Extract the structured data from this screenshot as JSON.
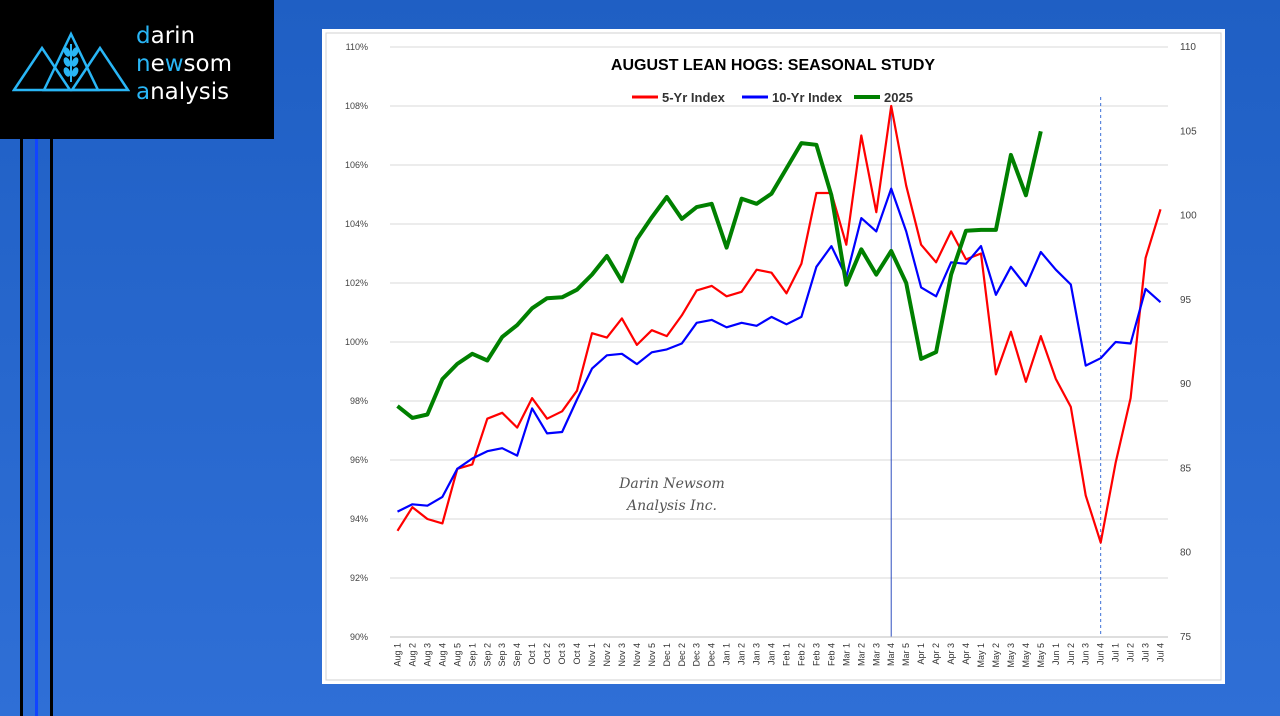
{
  "logo": {
    "line1_first": "d",
    "line1_rest": "arin",
    "line2_first": "n",
    "line2_rest": "e",
    "line2_mid": "w",
    "line2_end": "som",
    "line3_first": "a",
    "line3_rest": "nalysis"
  },
  "watermark": {
    "line1": "Darin Newsom",
    "line2": "Analysis Inc."
  },
  "colors": {
    "five_yr": "#ff0000",
    "ten_yr": "#0000ff",
    "y2025": "#008000",
    "accent": "#29b6f6"
  },
  "chart_data": {
    "type": "line",
    "title": "AUGUST LEAN HOGS: SEASONAL STUDY",
    "legend_position": "top-center",
    "categories": [
      "Aug 1",
      "Aug 2",
      "Aug 3",
      "Aug 4",
      "Aug 5",
      "Sep 1",
      "Sep 2",
      "Sep 3",
      "Sep 4",
      "Oct 1",
      "Oct 2",
      "Oct 3",
      "Oct 4",
      "Nov 1",
      "Nov 2",
      "Nov 3",
      "Nov 4",
      "Nov 5",
      "Dec 1",
      "Dec 2",
      "Dec 3",
      "Dec 4",
      "Jan 1",
      "Jan 2",
      "Jan 3",
      "Jan 4",
      "Feb 1",
      "Feb 2",
      "Feb 3",
      "Feb 4",
      "Mar 1",
      "Mar 2",
      "Mar 3",
      "Mar 4",
      "Mar 5",
      "Apr 1",
      "Apr 2",
      "Apr 3",
      "Apr 4",
      "May 1",
      "May 2",
      "May 3",
      "May 4",
      "May 5",
      "Jun 1",
      "Jun 2",
      "Jun 3",
      "Jun 4",
      "Jul 1",
      "Jul 2",
      "Jul 3",
      "Jul 4"
    ],
    "y_left": {
      "min": 90,
      "max": 110,
      "ticks": [
        "90%",
        "92%",
        "94%",
        "96%",
        "98%",
        "100%",
        "102%",
        "104%",
        "106%",
        "108%",
        "110%"
      ]
    },
    "y_right": {
      "min": 75,
      "max": 110,
      "ticks": [
        "75",
        "80",
        "85",
        "90",
        "95",
        "100",
        "105",
        "110"
      ]
    },
    "series": [
      {
        "name": "5-Yr Index",
        "axis": "left",
        "values": [
          93.6,
          94.4,
          94.0,
          93.85,
          95.7,
          95.85,
          97.4,
          97.6,
          97.1,
          98.1,
          97.4,
          97.65,
          98.35,
          100.3,
          100.15,
          100.8,
          99.9,
          100.4,
          100.2,
          100.9,
          101.75,
          101.9,
          101.55,
          101.7,
          102.45,
          102.35,
          101.65,
          102.65,
          105.05,
          105.05,
          103.3,
          107.0,
          104.4,
          108.0,
          105.3,
          103.3,
          102.7,
          103.75,
          102.8,
          103.0,
          98.9,
          100.35,
          98.65,
          100.2,
          98.75,
          97.8,
          94.8,
          93.2,
          95.9,
          98.1,
          102.85,
          104.5
        ]
      },
      {
        "name": "10-Yr Index",
        "axis": "left",
        "values": [
          94.25,
          94.5,
          94.45,
          94.75,
          95.7,
          96.05,
          96.3,
          96.4,
          96.15,
          97.75,
          96.9,
          96.95,
          98.05,
          99.1,
          99.55,
          99.6,
          99.25,
          99.65,
          99.75,
          99.95,
          100.65,
          100.75,
          100.5,
          100.65,
          100.55,
          100.85,
          100.6,
          100.85,
          102.55,
          103.25,
          102.2,
          104.2,
          103.75,
          105.2,
          103.75,
          101.85,
          101.55,
          102.7,
          102.65,
          103.25,
          101.6,
          102.55,
          101.9,
          103.05,
          102.45,
          101.95,
          99.2,
          99.45,
          100.0,
          99.95,
          101.8,
          101.35
        ]
      },
      {
        "name": "2025",
        "axis": "right",
        "values": [
          88.7,
          88.0,
          88.2,
          90.3,
          91.2,
          91.8,
          91.4,
          92.8,
          93.5,
          94.5,
          95.1,
          95.15,
          95.6,
          96.5,
          97.6,
          96.1,
          98.6,
          99.9,
          101.1,
          99.8,
          100.5,
          100.7,
          98.1,
          101.0,
          100.7,
          101.3,
          102.8,
          104.3,
          104.2,
          101.2,
          95.9,
          98.0,
          96.5,
          97.9,
          96.0,
          91.5,
          91.9,
          96.5,
          99.1,
          99.15,
          99.15,
          103.6,
          101.2,
          105.0,
          null,
          null,
          null,
          null,
          null,
          null,
          null,
          null
        ]
      }
    ],
    "vertical_markers": [
      {
        "category": "Mar 4",
        "style": "solid"
      },
      {
        "category": "Jun 4",
        "style": "dotted"
      }
    ]
  }
}
